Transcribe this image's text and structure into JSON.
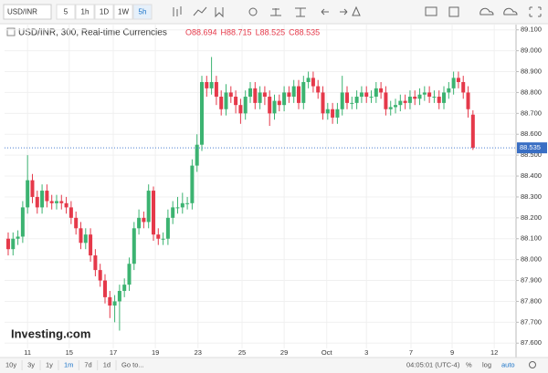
{
  "toolbar": {
    "symbol": "USD/INR",
    "intervals": [
      "5",
      "1h",
      "1D",
      "1W",
      "5h"
    ]
  },
  "chart_data": {
    "type": "candlestick",
    "title": "USD/INR, 300, Real-time Currencies",
    "last_ohlc": [
      "O88.694",
      "H88.715",
      "L88.525",
      "C88.535"
    ],
    "watermark": "Investing.com",
    "up_color": "#3cb371",
    "down_color": "#e5394a",
    "grid": true,
    "open": [
      88.1,
      88.05,
      88.1,
      88.11,
      88.25,
      88.38,
      88.3,
      88.25,
      88.33,
      88.28,
      88.27,
      88.28,
      88.27,
      88.25,
      88.2,
      88.15,
      88.08,
      88.12,
      88.02,
      87.95,
      87.9,
      87.82,
      87.78,
      87.8,
      87.85,
      87.88,
      87.98,
      88.15,
      88.2,
      88.18,
      88.33,
      88.12,
      88.1,
      88.1,
      88.2,
      88.25,
      88.25,
      88.27,
      88.27,
      88.45,
      88.55,
      88.85,
      88.82,
      88.85,
      88.78,
      88.72,
      88.8,
      88.78,
      88.74,
      88.7,
      88.78,
      88.82,
      88.75,
      88.8,
      88.78,
      88.7,
      88.76,
      88.74,
      88.8,
      88.78,
      88.83,
      88.75,
      88.85,
      88.87,
      88.83,
      88.8,
      88.7,
      88.72,
      88.68,
      88.72,
      88.8,
      88.75,
      88.75,
      88.78,
      88.8,
      88.78,
      88.78,
      88.82,
      88.8,
      88.72,
      88.73,
      88.74,
      88.76,
      88.75,
      88.78,
      88.77,
      88.79,
      88.8,
      88.78,
      88.78,
      88.75,
      88.8,
      88.82,
      88.87,
      88.85,
      88.8,
      88.694
    ],
    "high": [
      88.13,
      88.13,
      88.14,
      88.28,
      88.5,
      88.41,
      88.33,
      88.36,
      88.36,
      88.31,
      88.31,
      88.31,
      88.3,
      88.28,
      88.23,
      88.18,
      88.15,
      88.15,
      88.05,
      87.98,
      87.93,
      87.85,
      87.83,
      87.88,
      87.91,
      88.01,
      88.18,
      88.24,
      88.23,
      88.36,
      88.35,
      88.15,
      88.13,
      88.24,
      88.28,
      88.3,
      88.32,
      88.3,
      88.48,
      88.6,
      88.88,
      88.88,
      88.97,
      88.88,
      88.81,
      88.84,
      88.83,
      88.81,
      88.77,
      88.81,
      88.85,
      88.85,
      88.83,
      88.83,
      88.81,
      88.79,
      88.79,
      88.83,
      88.83,
      88.86,
      88.86,
      88.88,
      88.9,
      88.9,
      88.86,
      88.83,
      88.75,
      88.75,
      88.75,
      88.88,
      88.83,
      88.78,
      88.81,
      88.83,
      88.83,
      88.81,
      88.85,
      88.85,
      88.83,
      88.76,
      88.77,
      88.79,
      88.79,
      88.81,
      88.81,
      88.82,
      88.83,
      88.83,
      88.81,
      88.81,
      88.83,
      88.85,
      88.9,
      88.9,
      88.88,
      88.83,
      88.715
    ],
    "low": [
      88.02,
      88.02,
      88.07,
      88.08,
      88.22,
      88.27,
      88.22,
      88.22,
      88.25,
      88.24,
      88.24,
      88.24,
      88.22,
      88.17,
      88.12,
      88.05,
      88.05,
      87.99,
      87.92,
      87.87,
      87.79,
      87.72,
      87.7,
      87.66,
      87.82,
      87.85,
      87.95,
      88.12,
      88.15,
      88.15,
      88.09,
      88.07,
      88.07,
      88.07,
      88.17,
      88.22,
      88.22,
      88.24,
      88.24,
      88.42,
      88.52,
      88.78,
      88.79,
      88.74,
      88.69,
      88.69,
      88.75,
      88.7,
      88.65,
      88.67,
      88.75,
      88.72,
      88.72,
      88.74,
      88.64,
      88.67,
      88.71,
      88.71,
      88.75,
      88.75,
      88.72,
      88.72,
      88.82,
      88.8,
      88.77,
      88.67,
      88.67,
      88.65,
      88.65,
      88.69,
      88.72,
      88.72,
      88.72,
      88.75,
      88.75,
      88.75,
      88.75,
      88.77,
      88.69,
      88.69,
      88.7,
      88.71,
      88.72,
      88.72,
      88.74,
      88.74,
      88.76,
      88.75,
      88.75,
      88.72,
      88.72,
      88.77,
      88.79,
      88.82,
      88.77,
      88.68,
      88.525
    ],
    "close": [
      88.05,
      88.1,
      88.11,
      88.25,
      88.38,
      88.3,
      88.25,
      88.33,
      88.28,
      88.27,
      88.28,
      88.27,
      88.25,
      88.2,
      88.15,
      88.08,
      88.12,
      88.02,
      87.95,
      87.9,
      87.82,
      87.78,
      87.8,
      87.85,
      87.88,
      87.98,
      88.15,
      88.2,
      88.18,
      88.33,
      88.12,
      88.1,
      88.1,
      88.2,
      88.25,
      88.25,
      88.27,
      88.27,
      88.45,
      88.55,
      88.85,
      88.82,
      88.85,
      88.78,
      88.72,
      88.8,
      88.78,
      88.74,
      88.7,
      88.78,
      88.82,
      88.75,
      88.8,
      88.78,
      88.7,
      88.76,
      88.74,
      88.8,
      88.78,
      88.83,
      88.75,
      88.85,
      88.87,
      88.83,
      88.8,
      88.7,
      88.72,
      88.68,
      88.72,
      88.8,
      88.75,
      88.75,
      88.78,
      88.8,
      88.78,
      88.78,
      88.82,
      88.8,
      88.72,
      88.73,
      88.74,
      88.76,
      88.75,
      88.78,
      88.77,
      88.79,
      88.8,
      88.78,
      88.78,
      88.75,
      88.8,
      88.82,
      88.87,
      88.85,
      88.8,
      88.72,
      88.535
    ],
    "xlim": [
      -0.75,
      104.9
    ],
    "xticks": [
      {
        "value": 4,
        "label": "11"
      },
      {
        "value": 12.6,
        "label": "15"
      },
      {
        "value": 21.7,
        "label": "17"
      },
      {
        "value": 30.4,
        "label": "19"
      },
      {
        "value": 39.2,
        "label": "23"
      },
      {
        "value": 48.3,
        "label": "25"
      },
      {
        "value": 57,
        "label": "29"
      },
      {
        "value": 65.8,
        "label": "Oct"
      },
      {
        "value": 74,
        "label": "3"
      },
      {
        "value": 83.2,
        "label": "7"
      },
      {
        "value": 91.7,
        "label": "9"
      },
      {
        "value": 100.4,
        "label": "12"
      }
    ],
    "ylim": [
      87.54,
      89.125
    ],
    "yticks": [
      {
        "value": 87.6,
        "label": "87.600"
      },
      {
        "value": 87.7,
        "label": "87.700"
      },
      {
        "value": 87.8,
        "label": "87.800"
      },
      {
        "value": 87.9,
        "label": "87.900"
      },
      {
        "value": 88.0,
        "label": "88.000"
      },
      {
        "value": 88.1,
        "label": "88.100"
      },
      {
        "value": 88.2,
        "label": "88.200"
      },
      {
        "value": 88.3,
        "label": "88.300"
      },
      {
        "value": 88.4,
        "label": "88.400"
      },
      {
        "value": 88.5,
        "label": "88.500"
      },
      {
        "value": 88.6,
        "label": "88.600"
      },
      {
        "value": 88.7,
        "label": "88.700"
      },
      {
        "value": 88.8,
        "label": "88.800"
      },
      {
        "value": 88.9,
        "label": "88.900"
      },
      {
        "value": 89.0,
        "label": "89.000"
      },
      {
        "value": 89.1,
        "label": "89.100"
      }
    ]
  },
  "footer": {
    "ranges": [
      "10y",
      "3y",
      "1y",
      "1m",
      "7d",
      "1d"
    ],
    "goto": "Go to...",
    "time": "04:05:01 (UTC-4)",
    "options": [
      "%",
      "log",
      "auto"
    ]
  }
}
